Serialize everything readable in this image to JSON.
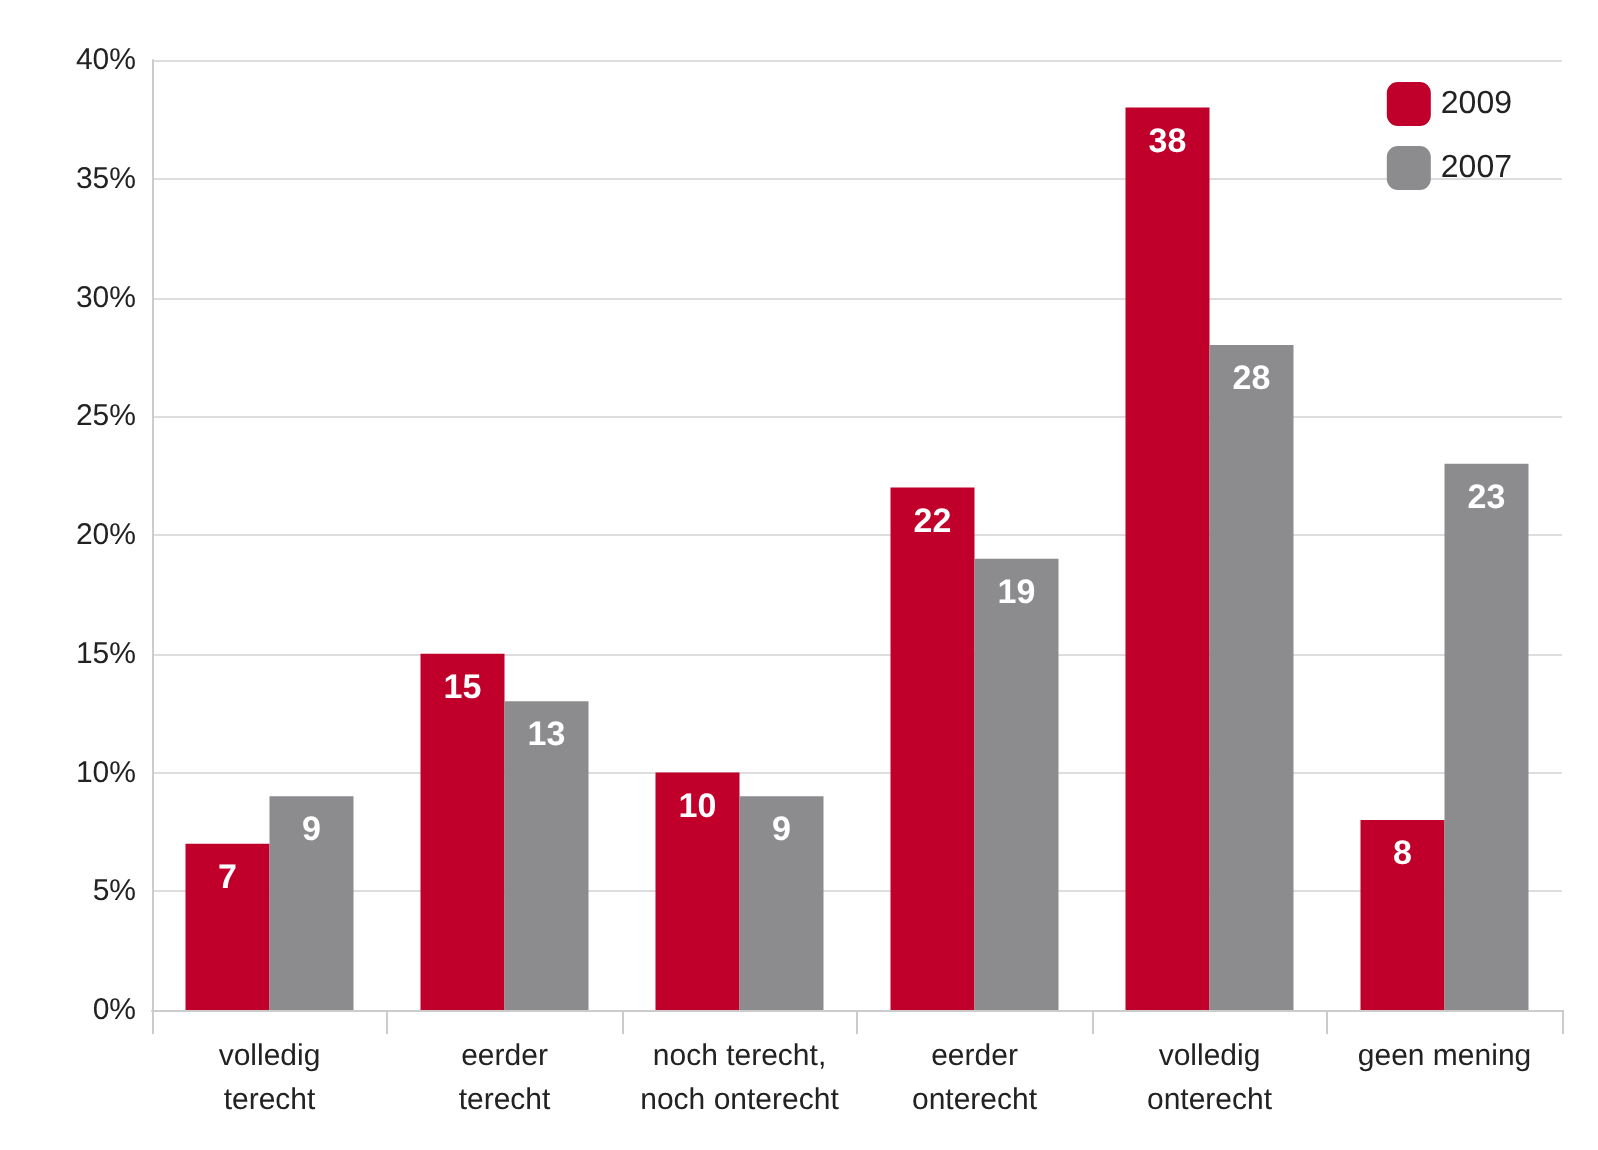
{
  "chart_data": {
    "type": "bar",
    "categories": [
      "volledig\nterecht",
      "eerder\nterecht",
      "noch terecht,\nnoch onterecht",
      "eerder\nonterecht",
      "volledig\nonterecht",
      "geen mening"
    ],
    "series": [
      {
        "name": "2009",
        "color": "#c0002b",
        "values": [
          7,
          15,
          10,
          22,
          38,
          8
        ]
      },
      {
        "name": "2007",
        "color": "#8c8c8f",
        "values": [
          9,
          13,
          9,
          19,
          28,
          23
        ]
      }
    ],
    "ylim": [
      0,
      40
    ],
    "yticks": [
      {
        "value": 0,
        "label": "0%"
      },
      {
        "value": 5,
        "label": "5%"
      },
      {
        "value": 10,
        "label": "10%"
      },
      {
        "value": 15,
        "label": "15%"
      },
      {
        "value": 20,
        "label": "20%"
      },
      {
        "value": 25,
        "label": "25%"
      },
      {
        "value": 30,
        "label": "30%"
      },
      {
        "value": 35,
        "label": "35%"
      },
      {
        "value": 40,
        "label": "40%"
      }
    ],
    "grid": "y",
    "legend": "top right",
    "data_labels": true
  }
}
